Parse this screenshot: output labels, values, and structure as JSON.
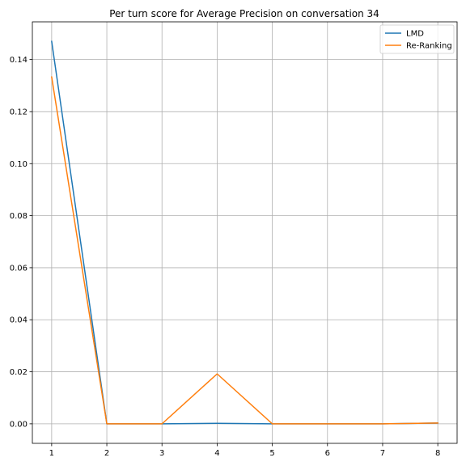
{
  "chart_data": {
    "type": "line",
    "title": "Per turn score for Average Precision on conversation 34",
    "xlabel": "",
    "ylabel": "",
    "x": [
      1,
      2,
      3,
      4,
      5,
      6,
      7,
      8
    ],
    "xticks": [
      "1",
      "2",
      "3",
      "4",
      "5",
      "6",
      "7",
      "8"
    ],
    "yticks": [
      "0.00",
      "0.02",
      "0.04",
      "0.06",
      "0.08",
      "0.10",
      "0.12",
      "0.14"
    ],
    "ylim": [
      -0.0075,
      0.1545
    ],
    "xlim": [
      0.65,
      8.35
    ],
    "grid": true,
    "legend_position": "top-right",
    "series": [
      {
        "name": "LMD",
        "color": "#1f77b4",
        "values": [
          0.147,
          0.0,
          0.0,
          0.0002,
          0.0,
          0.0,
          0.0,
          0.0003
        ]
      },
      {
        "name": "Re-Ranking",
        "color": "#ff7f0e",
        "values": [
          0.1333,
          0.0,
          0.0,
          0.0192,
          0.0,
          0.0,
          0.0,
          0.0003
        ]
      }
    ]
  }
}
